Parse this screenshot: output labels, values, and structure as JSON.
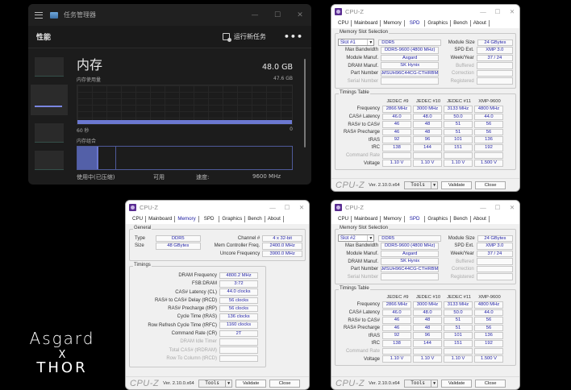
{
  "task_manager": {
    "window_title": "任务管理器",
    "window_controls": {
      "minimize": "—",
      "maximize": "☐",
      "close": "✕"
    },
    "section_title": "性能",
    "run_task_label": "运行新任务",
    "more_label": "•••",
    "memory_title": "内存",
    "memory_total": "48.0 GB",
    "usage_label": "内存使用量",
    "usage_max": "47.6 GB",
    "axis_left": "60 秒",
    "axis_right": "0",
    "composition_label": "内存组合",
    "stats": {
      "in_use_label": "使用中(已压缩)",
      "available_label": "可用",
      "speed_label": "速度:",
      "speed_value": "9600 MHz"
    },
    "accent_color": "#6b78d0"
  },
  "cpuz_common": {
    "title": "CPU-Z",
    "tabs": [
      "CPU",
      "Mainboard",
      "Memory",
      "SPD",
      "Graphics",
      "Bench",
      "About"
    ],
    "brand": "CPU-Z",
    "version": "Ver. 2.10.0.x64",
    "tools_label": "Tools",
    "validate_label": "Validate",
    "close_label": "Close",
    "close_icon": "✕",
    "minimize_icon": "—",
    "maximize_icon": "☐"
  },
  "spd_labels": {
    "group_slot": "Memory Slot Selection",
    "max_bandwidth": "Max Bandwidth",
    "module_manuf": "Module Manuf.",
    "dram_manuf": "DRAM Manuf.",
    "part_number": "Part Number",
    "serial_number": "Serial Number",
    "module_size": "Module Size",
    "spd_ext": "SPD Ext.",
    "week_year": "Week/Year",
    "buffered": "Buffered",
    "correction": "Correction",
    "registered": "Registered",
    "group_timings": "Timings Table",
    "columns": [
      "JEDEC #9",
      "JEDEC #10",
      "JEDEC #11",
      "XMP-9600"
    ],
    "row_labels": [
      "Frequency",
      "CAS# Latency",
      "RAS# to CAS#",
      "RAS# Precharge",
      "tRAS",
      "tRC",
      "Command Rate",
      "Voltage"
    ]
  },
  "spd_slot1": {
    "slot": "Slot #1",
    "type": "DDR5",
    "max_bandwidth": "DDR5-9600 (4800 MHz)",
    "module_manuf": "Asgard",
    "dram_manuf": "SK Hynix",
    "part_number": "VAMSUH96C44CG-CTHRBM",
    "serial_number": "",
    "module_size": "24 GBytes",
    "spd_ext": "XMP 3.0",
    "week_year": "37 / 24",
    "timings": [
      [
        "2866 MHz",
        "3000 MHz",
        "3133 MHz",
        "4800 MHz"
      ],
      [
        "46.0",
        "48.0",
        "50.0",
        "44.0"
      ],
      [
        "46",
        "48",
        "51",
        "56"
      ],
      [
        "46",
        "48",
        "51",
        "56"
      ],
      [
        "92",
        "96",
        "101",
        "136"
      ],
      [
        "138",
        "144",
        "151",
        "192"
      ],
      [
        "",
        "",
        "",
        ""
      ],
      [
        "1.10 V",
        "1.10 V",
        "1.10 V",
        "1.500 V"
      ]
    ]
  },
  "spd_slot2": {
    "slot": "Slot #2",
    "type": "DDR5",
    "max_bandwidth": "DDR5-9600 (4800 MHz)",
    "module_manuf": "Asgard",
    "dram_manuf": "SK Hynix",
    "part_number": "VAMSUH96C44CG-CTHRBM",
    "serial_number": "",
    "module_size": "24 GBytes",
    "spd_ext": "XMP 3.0",
    "week_year": "37 / 24",
    "timings": [
      [
        "2866 MHz",
        "3000 MHz",
        "3133 MHz",
        "4800 MHz"
      ],
      [
        "46.0",
        "48.0",
        "50.0",
        "44.0"
      ],
      [
        "46",
        "48",
        "51",
        "56"
      ],
      [
        "46",
        "48",
        "51",
        "56"
      ],
      [
        "92",
        "96",
        "101",
        "136"
      ],
      [
        "138",
        "144",
        "151",
        "192"
      ],
      [
        "",
        "",
        "",
        ""
      ],
      [
        "1.10 V",
        "1.10 V",
        "1.10 V",
        "1.500 V"
      ]
    ]
  },
  "memory_tab": {
    "group_general": "General",
    "type_label": "Type",
    "type_value": "DDR5",
    "size_label": "Size",
    "size_value": "48 GBytes",
    "channel_label": "Channel #",
    "channel_value": "4 x 32-bit",
    "mcf_label": "Mem Controller Freq.",
    "mcf_value": "2400.0 MHz",
    "uncore_label": "Uncore Frequency",
    "uncore_value": "3900.0 MHz",
    "group_timings": "Timings",
    "timings": [
      {
        "label": "DRAM Frequency",
        "value": "4800.2 MHz",
        "dim": false
      },
      {
        "label": "FSB:DRAM",
        "value": "3:72",
        "dim": false
      },
      {
        "label": "CAS# Latency (CL)",
        "value": "44.0 clocks",
        "dim": false
      },
      {
        "label": "RAS# to CAS# Delay (tRCD)",
        "value": "56 clocks",
        "dim": false
      },
      {
        "label": "RAS# Precharge (tRP)",
        "value": "56 clocks",
        "dim": false
      },
      {
        "label": "Cycle Time (tRAS)",
        "value": "136 clocks",
        "dim": false
      },
      {
        "label": "Row Refresh Cycle Time (tRFC)",
        "value": "1160 clocks",
        "dim": false
      },
      {
        "label": "Command Rate (CR)",
        "value": "2T",
        "dim": false
      },
      {
        "label": "DRAM Idle Timer",
        "value": "",
        "dim": true
      },
      {
        "label": "Total CAS# (tRDRAM)",
        "value": "",
        "dim": true
      },
      {
        "label": "Row To Column (tRCD)",
        "value": "",
        "dim": true
      }
    ]
  },
  "branding": {
    "line1": "Asgard",
    "line2": "X",
    "line3": "THOR"
  }
}
